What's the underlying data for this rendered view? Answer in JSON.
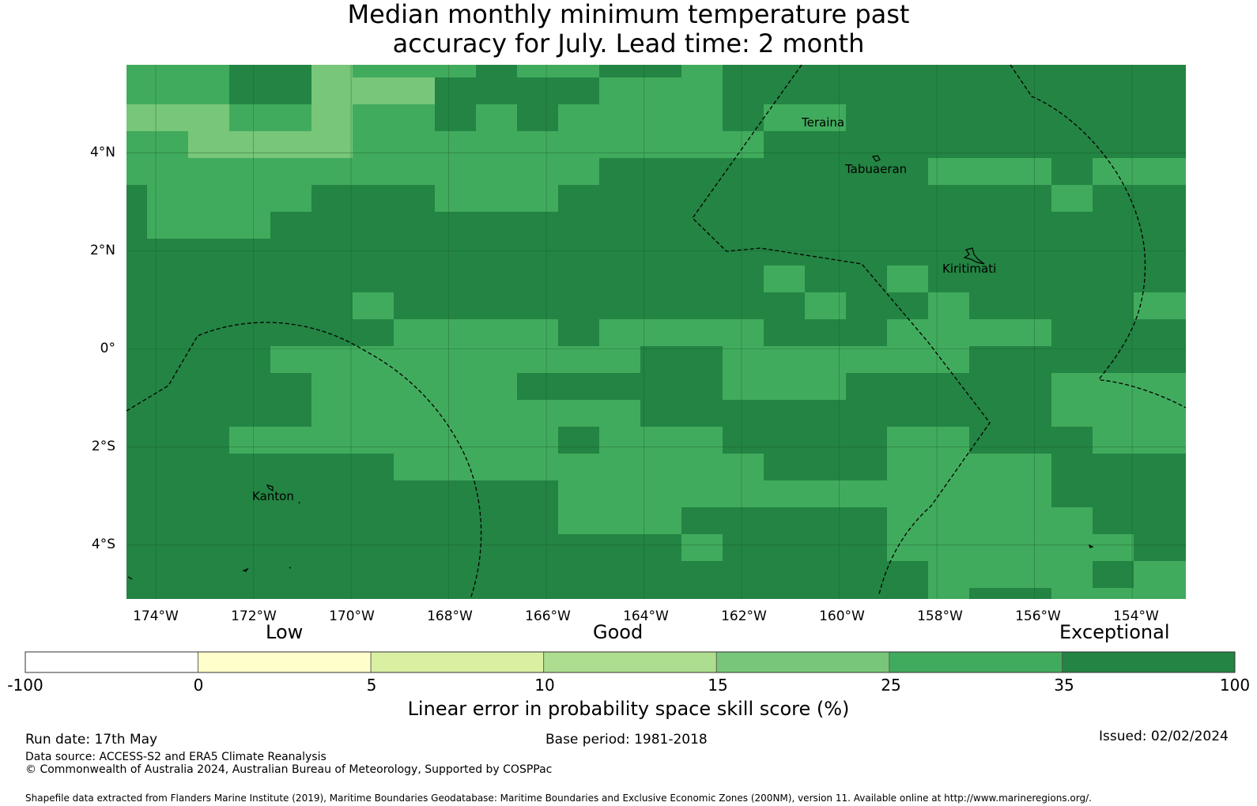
{
  "title": {
    "line1": "Median monthly minimum temperature past",
    "line2": "accuracy for July. Lead time: 2 month"
  },
  "map": {
    "lon_range": [
      -174.6,
      -152.9
    ],
    "lat_range": [
      -5.1,
      5.8
    ],
    "lon_ticks": [
      "174°W",
      "172°W",
      "170°W",
      "168°W",
      "166°W",
      "164°W",
      "162°W",
      "160°W",
      "158°W",
      "156°W",
      "154°W"
    ],
    "lat_ticks": [
      "4°N",
      "2°N",
      "0°",
      "2°S",
      "4°S"
    ],
    "places": [
      "Teraina",
      "Tabuaeran",
      "Kiritimati",
      "Kanton"
    ],
    "colors": {
      "c15_25": "#78c679",
      "c25_35": "#41ab5d",
      "c35_100": "#238443"
    }
  },
  "colorbar": {
    "categories": [
      "Low",
      "Good",
      "Exceptional"
    ],
    "ticks": [
      "-100",
      "0",
      "5",
      "10",
      "15",
      "25",
      "35",
      "100"
    ],
    "colors": [
      "#ffffff",
      "#ffffcc",
      "#d9f0a3",
      "#addd8e",
      "#78c679",
      "#41ab5d",
      "#238443"
    ],
    "label": "Linear error in probability space skill score (%)"
  },
  "footer": {
    "run_date": "Run date: 17th May",
    "base_period": "Base period: 1981-2018",
    "issued": "Issued: 02/02/2024",
    "data_source": "Data source: ACCESS-S2 and ERA5 Climate Reanalysis",
    "copyright": "© Commonwealth of Australia 2024, Australian Bureau of Meteorology, Supported by COSPPac",
    "shapefile": "Shapefile data extracted from Flanders Marine Institute (2019), Maritime Boundaries Geodatabase: Maritime Boundaries and Exclusive Economic Zones (200NM), version 11. Available online at http://www.marineregions.org/."
  }
}
